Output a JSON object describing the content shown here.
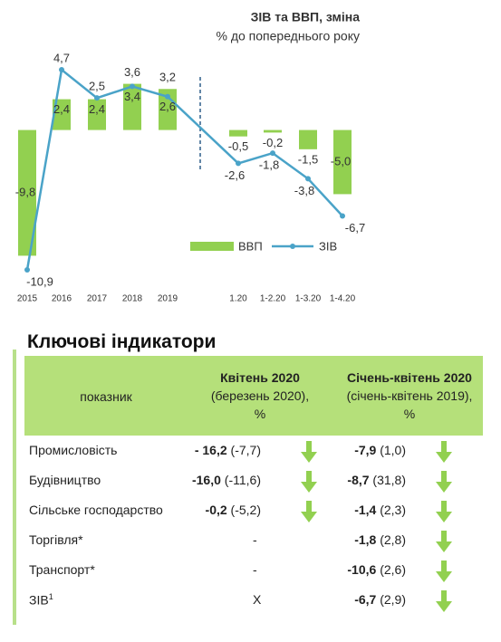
{
  "chart_data": {
    "type": "bar-line",
    "title": "ЗІВ та ВВП, зміна",
    "subtitle": "% до попереднього року",
    "categories": [
      "2015",
      "2016",
      "2017",
      "2018",
      "2019",
      "1.20",
      "1-2.20",
      "1-3.20",
      "1-4.20"
    ],
    "series": [
      {
        "name": "ВВП",
        "type": "bar",
        "color": "#92d050",
        "values": [
          -9.8,
          2.4,
          2.4,
          3.6,
          3.2,
          -0.5,
          -0.2,
          -1.5,
          -5.0
        ],
        "value_labels": [
          "-9,8",
          "2,4",
          "2,4",
          "3,6",
          "3,2",
          "-0,5",
          "-0,2",
          "-1,5",
          "-5,0"
        ]
      },
      {
        "name": "ЗІВ",
        "type": "line",
        "color": "#4aa3c8",
        "values": [
          -10.9,
          4.7,
          2.5,
          3.4,
          2.6,
          -2.6,
          -1.8,
          -3.8,
          -6.7
        ],
        "value_labels": [
          "-10,9",
          "4,7",
          "2,5",
          "3,4",
          "2,6",
          "-2,6",
          "-1,8",
          "-3,8",
          "-6,7"
        ]
      }
    ]
  },
  "section_title": "Ключові індикатори",
  "table": {
    "header": [
      [
        "показник"
      ],
      [
        "Квітень 2020",
        "(березень 2020),",
        "%"
      ],
      [
        "Січень-квітень 2020",
        "(січень-квітень 2019),",
        "%"
      ]
    ],
    "rows": [
      {
        "name": "Промисловість",
        "c1": "- 16,2",
        "c1p": "(-7,7)",
        "c2": "-7,9",
        "c2p": "(1,0)"
      },
      {
        "name": "Будівництво",
        "c1": "-16,0",
        "c1p": "(-11,6)",
        "c2": "-8,7",
        "c2p": "(31,8)"
      },
      {
        "name": "Сільське господарство",
        "c1": "-0,2",
        "c1p": "(-5,2)",
        "c2": "-1,4",
        "c2p": "(2,3)"
      },
      {
        "name": "Торгівля*",
        "c1": "-",
        "c2": "-1,8",
        "c2p": "(2,8)"
      },
      {
        "name": "Транспорт*",
        "c1": "-",
        "c2": "-10,6",
        "c2p": "(2,6)"
      },
      {
        "name": "ЗІВ",
        "sup": "1",
        "c1": "X",
        "c2": "-6,7",
        "c2p": "(2,9)"
      }
    ]
  }
}
